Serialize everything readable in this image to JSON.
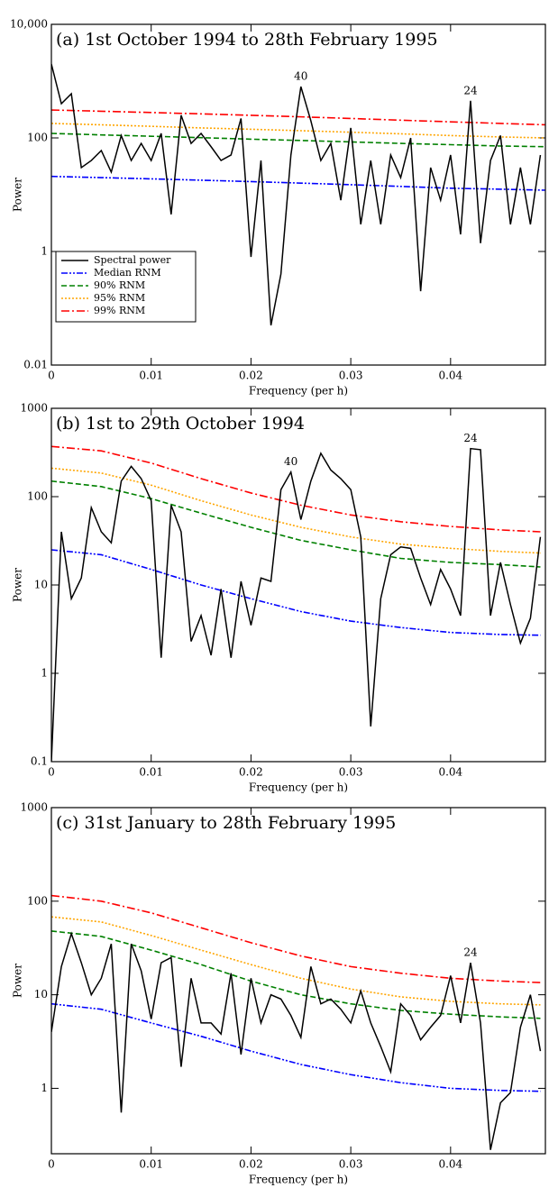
{
  "chart_data": [
    {
      "type": "line",
      "title": "(a) 1st October 1994 to 28th February 1995",
      "x_label": "Frequency (per h)",
      "y_label": "Power",
      "log_y": true,
      "xlim": [
        0,
        0.0495
      ],
      "ylim": [
        0.01,
        10000
      ],
      "xticks": [
        0,
        0.01,
        0.02,
        0.03,
        0.04
      ],
      "yticks": [
        0.01,
        1,
        100,
        {
          "value": 10000,
          "label": "10,000"
        }
      ],
      "legend": "lower left",
      "annotations": [
        {
          "text": "40",
          "x": 0.025
        },
        {
          "text": "24",
          "x": 0.042
        }
      ],
      "series": [
        {
          "name": "Spectral power",
          "color": "#000000",
          "linestyle": "solid",
          "x": [
            0,
            0.001,
            0.002,
            0.003,
            0.004,
            0.005,
            0.006,
            0.007,
            0.008,
            0.009,
            0.01,
            0.011,
            0.012,
            0.013,
            0.014,
            0.015,
            0.016,
            0.017,
            0.018,
            0.019,
            0.02,
            0.021,
            0.022,
            0.023,
            0.024,
            0.025,
            0.026,
            0.027,
            0.028,
            0.029,
            0.03,
            0.031,
            0.032,
            0.033,
            0.034,
            0.035,
            0.036,
            0.037,
            0.038,
            0.039,
            0.04,
            0.041,
            0.042,
            0.043,
            0.044,
            0.045,
            0.046,
            0.047,
            0.048,
            0.049
          ],
          "values": [
            2000,
            400,
            600,
            30,
            40,
            60,
            25,
            110,
            40,
            80,
            40,
            120,
            4.5,
            250,
            80,
            120,
            70,
            40,
            50,
            220,
            0.8,
            40,
            0.05,
            0.4,
            50,
            800,
            200,
            40,
            80,
            8,
            150,
            3,
            40,
            3,
            50,
            20,
            100,
            0.2,
            30,
            8,
            50,
            2,
            450,
            1.4,
            40,
            110,
            3,
            30,
            3,
            50
          ]
        },
        {
          "name": "Median RNM",
          "color": "#0000ff",
          "linestyle": "dashdotdot",
          "x": [
            0,
            0.005,
            0.01,
            0.015,
            0.02,
            0.025,
            0.03,
            0.035,
            0.04,
            0.045,
            0.0495
          ],
          "values": [
            21,
            20,
            19,
            18,
            17,
            16,
            15,
            14,
            13,
            12.5,
            12
          ]
        },
        {
          "name": "90% RNM",
          "color": "#008000",
          "linestyle": "dashed",
          "x": [
            0,
            0.005,
            0.01,
            0.015,
            0.02,
            0.025,
            0.03,
            0.035,
            0.04,
            0.045,
            0.0495
          ],
          "values": [
            120,
            113,
            107,
            101,
            95,
            90,
            85,
            80,
            76,
            72,
            70
          ]
        },
        {
          "name": "95% RNM",
          "color": "#ffa500",
          "linestyle": "dotted",
          "x": [
            0,
            0.005,
            0.01,
            0.015,
            0.02,
            0.025,
            0.03,
            0.035,
            0.04,
            0.045,
            0.0495
          ],
          "values": [
            180,
            170,
            160,
            150,
            142,
            134,
            126,
            118,
            110,
            104,
            100
          ]
        },
        {
          "name": "99% RNM",
          "color": "#ff0000",
          "linestyle": "dashdot",
          "x": [
            0,
            0.005,
            0.01,
            0.015,
            0.02,
            0.025,
            0.03,
            0.035,
            0.04,
            0.045,
            0.0495
          ],
          "values": [
            310,
            295,
            280,
            265,
            250,
            235,
            220,
            205,
            192,
            180,
            170
          ]
        }
      ]
    },
    {
      "type": "line",
      "title": "(b) 1st to 29th October 1994",
      "x_label": "Frequency (per h)",
      "y_label": "Power",
      "log_y": true,
      "xlim": [
        0,
        0.0495
      ],
      "ylim": [
        0.1,
        1000
      ],
      "xticks": [
        0,
        0.01,
        0.02,
        0.03,
        0.04
      ],
      "yticks": [
        0.1,
        1,
        10,
        100,
        1000
      ],
      "legend": false,
      "annotations": [
        {
          "text": "40",
          "x": 0.024
        },
        {
          "text": "24",
          "x": 0.042
        }
      ],
      "series": [
        {
          "name": "Spectral power",
          "color": "#000000",
          "linestyle": "solid",
          "x": [
            0,
            0.001,
            0.002,
            0.003,
            0.004,
            0.005,
            0.006,
            0.007,
            0.008,
            0.009,
            0.01,
            0.011,
            0.012,
            0.013,
            0.014,
            0.015,
            0.016,
            0.017,
            0.018,
            0.019,
            0.02,
            0.021,
            0.022,
            0.023,
            0.024,
            0.025,
            0.026,
            0.027,
            0.028,
            0.029,
            0.03,
            0.031,
            0.032,
            0.033,
            0.034,
            0.035,
            0.036,
            0.037,
            0.038,
            0.039,
            0.04,
            0.041,
            0.042,
            0.043,
            0.044,
            0.045,
            0.046,
            0.047,
            0.048,
            0.049
          ],
          "values": [
            0.1,
            40,
            7,
            12,
            75,
            40,
            30,
            150,
            220,
            160,
            90,
            1.5,
            80,
            40,
            2.3,
            4.5,
            1.6,
            9,
            1.5,
            11,
            3.5,
            12,
            11,
            120,
            190,
            55,
            150,
            310,
            200,
            160,
            120,
            35,
            0.25,
            7,
            22,
            27,
            26,
            12,
            6,
            15,
            9,
            4.5,
            350,
            340,
            4.5,
            18,
            6,
            2.2,
            4.2,
            35
          ]
        },
        {
          "name": "Median RNM",
          "color": "#0000ff",
          "linestyle": "dashdotdot",
          "x": [
            0,
            0.005,
            0.01,
            0.015,
            0.02,
            0.025,
            0.03,
            0.035,
            0.04,
            0.045,
            0.049
          ],
          "values": [
            25,
            22,
            15,
            10,
            7,
            5,
            3.9,
            3.3,
            2.9,
            2.75,
            2.7
          ]
        },
        {
          "name": "90% RNM",
          "color": "#008000",
          "linestyle": "dashed",
          "x": [
            0,
            0.005,
            0.01,
            0.015,
            0.02,
            0.025,
            0.03,
            0.035,
            0.04,
            0.045,
            0.049
          ],
          "values": [
            150,
            130,
            95,
            65,
            45,
            32,
            25,
            20,
            18,
            17,
            16
          ]
        },
        {
          "name": "95% RNM",
          "color": "#ffa500",
          "linestyle": "dotted",
          "x": [
            0,
            0.005,
            0.01,
            0.015,
            0.02,
            0.025,
            0.03,
            0.035,
            0.04,
            0.045,
            0.049
          ],
          "values": [
            210,
            185,
            135,
            90,
            62,
            45,
            35,
            29,
            26,
            24,
            23
          ]
        },
        {
          "name": "99% RNM",
          "color": "#ff0000",
          "linestyle": "dashdot",
          "x": [
            0,
            0.005,
            0.01,
            0.015,
            0.02,
            0.025,
            0.03,
            0.035,
            0.04,
            0.045,
            0.049
          ],
          "values": [
            370,
            330,
            240,
            160,
            110,
            80,
            62,
            52,
            46,
            42,
            40
          ]
        }
      ]
    },
    {
      "type": "line",
      "title": "(c) 31st January to 28th February 1995",
      "x_label": "Frequency (per h)",
      "y_label": "Power",
      "log_y": true,
      "xlim": [
        0,
        0.0495
      ],
      "ylim": [
        0.2,
        1000
      ],
      "xticks": [
        0,
        0.01,
        0.02,
        0.03,
        0.04
      ],
      "yticks": [
        1,
        10,
        100,
        1000
      ],
      "legend": false,
      "annotations": [
        {
          "text": "24",
          "x": 0.042
        }
      ],
      "series": [
        {
          "name": "Spectral power",
          "color": "#000000",
          "linestyle": "solid",
          "x": [
            0,
            0.001,
            0.002,
            0.003,
            0.004,
            0.005,
            0.006,
            0.007,
            0.008,
            0.009,
            0.01,
            0.011,
            0.012,
            0.013,
            0.014,
            0.015,
            0.016,
            0.017,
            0.018,
            0.019,
            0.02,
            0.021,
            0.022,
            0.023,
            0.024,
            0.025,
            0.026,
            0.027,
            0.028,
            0.029,
            0.03,
            0.031,
            0.032,
            0.033,
            0.034,
            0.035,
            0.036,
            0.037,
            0.038,
            0.039,
            0.04,
            0.041,
            0.042,
            0.043,
            0.044,
            0.045,
            0.046,
            0.047,
            0.048,
            0.049
          ],
          "values": [
            4,
            20,
            45,
            22,
            10,
            15,
            35,
            0.55,
            35,
            18,
            5.5,
            22,
            25,
            1.7,
            15,
            5,
            5,
            3.8,
            17,
            2.3,
            15,
            5,
            10,
            9,
            6,
            3.5,
            20,
            8,
            9,
            7,
            5,
            11,
            5,
            2.8,
            1.5,
            8,
            6,
            3.3,
            4.5,
            6,
            16,
            5,
            22,
            5,
            0.22,
            0.7,
            0.9,
            4.5,
            10,
            2.5
          ]
        },
        {
          "name": "Median RNM",
          "color": "#0000ff",
          "linestyle": "dashdotdot",
          "x": [
            0,
            0.005,
            0.01,
            0.015,
            0.02,
            0.025,
            0.03,
            0.035,
            0.04,
            0.045,
            0.049
          ],
          "values": [
            8,
            7,
            5,
            3.6,
            2.5,
            1.8,
            1.4,
            1.15,
            1,
            0.95,
            0.93
          ]
        },
        {
          "name": "90% RNM",
          "color": "#008000",
          "linestyle": "dashed",
          "x": [
            0,
            0.005,
            0.01,
            0.015,
            0.02,
            0.025,
            0.03,
            0.035,
            0.04,
            0.045,
            0.049
          ],
          "values": [
            48,
            42,
            30,
            21,
            14,
            10,
            8,
            6.8,
            6.2,
            5.8,
            5.6
          ]
        },
        {
          "name": "95% RNM",
          "color": "#ffa500",
          "linestyle": "dotted",
          "x": [
            0,
            0.005,
            0.01,
            0.015,
            0.02,
            0.025,
            0.03,
            0.035,
            0.04,
            0.045,
            0.049
          ],
          "values": [
            68,
            60,
            43,
            30,
            21,
            15,
            11.5,
            9.5,
            8.5,
            8,
            7.8
          ]
        },
        {
          "name": "99% RNM",
          "color": "#ff0000",
          "linestyle": "dashdot",
          "x": [
            0,
            0.005,
            0.01,
            0.015,
            0.02,
            0.025,
            0.03,
            0.035,
            0.04,
            0.045,
            0.049
          ],
          "values": [
            115,
            100,
            75,
            52,
            36,
            26,
            20,
            17,
            15,
            14,
            13.5
          ]
        }
      ]
    }
  ]
}
